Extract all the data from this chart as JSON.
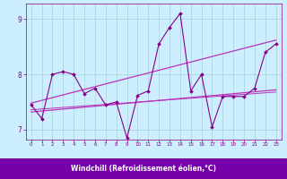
{
  "xlabel": "Windchill (Refroidissement éolien,°C)",
  "bg_color": "#cceeff",
  "plot_bg_color": "#cceeff",
  "xlabel_bg": "#7700aa",
  "xlabel_fg": "#ffffff",
  "line_color": "#880088",
  "trend_color": "#bb33bb",
  "xlim": [
    -0.5,
    23.5
  ],
  "ylim": [
    6.82,
    9.28
  ],
  "yticks": [
    7,
    8,
    9
  ],
  "xticks": [
    0,
    1,
    2,
    3,
    4,
    5,
    6,
    7,
    8,
    9,
    10,
    11,
    12,
    13,
    14,
    15,
    16,
    17,
    18,
    19,
    20,
    21,
    22,
    23
  ],
  "data_x": [
    0,
    1,
    2,
    3,
    4,
    5,
    6,
    7,
    8,
    9,
    10,
    11,
    12,
    13,
    14,
    15,
    16,
    17,
    18,
    19,
    20,
    21,
    22,
    23
  ],
  "data_y": [
    7.45,
    7.2,
    8.0,
    8.05,
    8.0,
    7.65,
    7.75,
    7.45,
    7.5,
    6.85,
    7.62,
    7.7,
    8.55,
    8.85,
    9.1,
    7.7,
    8.0,
    7.05,
    7.6,
    7.6,
    7.6,
    7.75,
    8.4,
    8.55
  ],
  "trend1_y0": 7.48,
  "trend1_y1": 8.62,
  "trend2_y0": 7.32,
  "trend2_y1": 7.72,
  "trend3_y0": 7.36,
  "trend3_y1": 7.68
}
